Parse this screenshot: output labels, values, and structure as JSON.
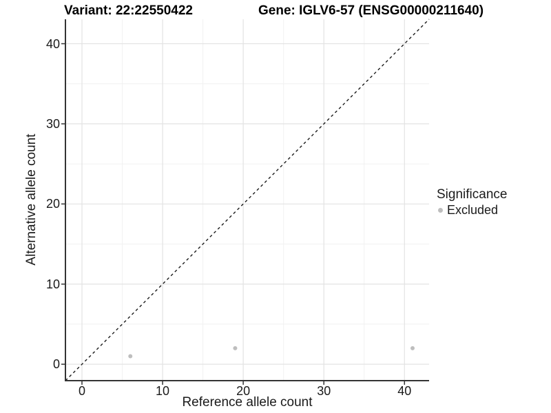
{
  "window": {
    "title_left": "Variant: 22:22550422",
    "title_right": "Gene: IGLV6-57 (ENSG00000211640)"
  },
  "chart_data": {
    "type": "scatter",
    "title": "Variant: 22:22550422   Gene: IGLV6-57 (ENSG00000211640)",
    "xlabel": "Reference allele count",
    "ylabel": "Alternative allele count",
    "xlim": [
      -2.05,
      43.05
    ],
    "ylim": [
      -2.05,
      43.05
    ],
    "xticks": [
      0,
      10,
      20,
      30,
      40
    ],
    "yticks": [
      0,
      10,
      20,
      30,
      40
    ],
    "x_minor_ticks": [
      5,
      15,
      25,
      35
    ],
    "y_minor_ticks": [
      5,
      15,
      25,
      35
    ],
    "grid": "major and minor gridlines, white background",
    "legend_position": "right",
    "series": [
      {
        "name": "Excluded",
        "color": "#bebebe",
        "marker": "circle",
        "points": [
          {
            "x": 6,
            "y": 1
          },
          {
            "x": 19,
            "y": 2
          },
          {
            "x": 41,
            "y": 2
          }
        ]
      }
    ],
    "reference_line": {
      "type": "identity y=x",
      "style": "dashed",
      "color": "#1a1a1a"
    }
  },
  "legend": {
    "title": "Significance",
    "entries": [
      {
        "label": "Excluded",
        "color": "#bebebe"
      }
    ]
  },
  "colors": {
    "background": "#ffffff",
    "point": "#bebebe",
    "grid_major": "#e3e3e3",
    "grid_minor": "#f1f1f1",
    "axis_line": "#333333",
    "tick_mark": "#333333",
    "text": "#1a1a1a",
    "dashed_line": "#1a1a1a"
  }
}
